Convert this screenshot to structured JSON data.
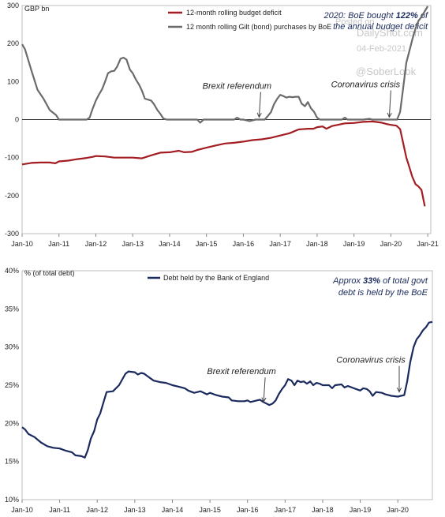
{
  "chart_data": [
    {
      "type": "line",
      "unit_label": "GBP bn",
      "ylim": [
        -300,
        300
      ],
      "y_ticks": [
        -300,
        -200,
        -100,
        0,
        100,
        200,
        300
      ],
      "x_range": [
        2010.0,
        2021.083
      ],
      "x_ticks": [
        "Jan-10",
        "Jan-11",
        "Jan-12",
        "Jan-13",
        "Jan-14",
        "Jan-15",
        "Jan-16",
        "Jan-17",
        "Jan-18",
        "Jan-19",
        "Jan-20",
        "Jan-21"
      ],
      "legend": "top-left",
      "series": [
        {
          "name": "12-month rolling budget deficit",
          "color": "#a31d22",
          "points": [
            [
              2010.0,
              -118
            ],
            [
              2010.25,
              -114
            ],
            [
              2010.5,
              -113
            ],
            [
              2010.75,
              -113
            ],
            [
              2010.9,
              -115
            ],
            [
              2011.0,
              -110
            ],
            [
              2011.25,
              -108
            ],
            [
              2011.5,
              -104
            ],
            [
              2011.75,
              -101
            ],
            [
              2011.92,
              -98
            ],
            [
              2012.0,
              -96
            ],
            [
              2012.25,
              -97
            ],
            [
              2012.5,
              -100
            ],
            [
              2012.75,
              -100
            ],
            [
              2013.0,
              -100
            ],
            [
              2013.25,
              -102
            ],
            [
              2013.5,
              -94
            ],
            [
              2013.75,
              -87
            ],
            [
              2014.0,
              -86
            ],
            [
              2014.25,
              -82
            ],
            [
              2014.4,
              -86
            ],
            [
              2014.6,
              -85
            ],
            [
              2014.75,
              -80
            ],
            [
              2015.0,
              -74
            ],
            [
              2015.25,
              -68
            ],
            [
              2015.5,
              -63
            ],
            [
              2015.75,
              -61
            ],
            [
              2016.0,
              -58
            ],
            [
              2016.25,
              -54
            ],
            [
              2016.5,
              -52
            ],
            [
              2016.75,
              -48
            ],
            [
              2017.0,
              -42
            ],
            [
              2017.25,
              -36
            ],
            [
              2017.5,
              -26
            ],
            [
              2017.75,
              -24
            ],
            [
              2017.9,
              -24
            ],
            [
              2018.0,
              -20
            ],
            [
              2018.15,
              -18
            ],
            [
              2018.25,
              -24
            ],
            [
              2018.4,
              -17
            ],
            [
              2018.6,
              -13
            ],
            [
              2018.75,
              -10
            ],
            [
              2019.0,
              -9
            ],
            [
              2019.25,
              -6
            ],
            [
              2019.5,
              -5
            ],
            [
              2019.75,
              -8
            ],
            [
              2019.9,
              -12
            ],
            [
              2020.0,
              -14
            ],
            [
              2020.15,
              -16
            ],
            [
              2020.25,
              -25
            ],
            [
              2020.33,
              -60
            ],
            [
              2020.42,
              -100
            ],
            [
              2020.5,
              -125
            ],
            [
              2020.58,
              -150
            ],
            [
              2020.67,
              -170
            ],
            [
              2020.75,
              -176
            ],
            [
              2020.83,
              -185
            ],
            [
              2020.92,
              -228
            ]
          ]
        },
        {
          "name": "12 month rolling Gilt (bond) purchases by BoE",
          "color": "#6b6b6b",
          "points": [
            [
              2010.0,
              198
            ],
            [
              2010.08,
              185
            ],
            [
              2010.25,
              130
            ],
            [
              2010.42,
              78
            ],
            [
              2010.58,
              55
            ],
            [
              2010.75,
              25
            ],
            [
              2010.92,
              12
            ],
            [
              2011.0,
              0
            ],
            [
              2011.5,
              0
            ],
            [
              2011.75,
              0
            ],
            [
              2011.83,
              5
            ],
            [
              2011.92,
              30
            ],
            [
              2012.0,
              50
            ],
            [
              2012.08,
              65
            ],
            [
              2012.17,
              80
            ],
            [
              2012.25,
              100
            ],
            [
              2012.33,
              122
            ],
            [
              2012.42,
              127
            ],
            [
              2012.5,
              128
            ],
            [
              2012.58,
              140
            ],
            [
              2012.67,
              160
            ],
            [
              2012.75,
              163
            ],
            [
              2012.83,
              158
            ],
            [
              2012.92,
              132
            ],
            [
              2013.0,
              122
            ],
            [
              2013.08,
              106
            ],
            [
              2013.17,
              92
            ],
            [
              2013.25,
              76
            ],
            [
              2013.33,
              55
            ],
            [
              2013.5,
              50
            ],
            [
              2013.58,
              40
            ],
            [
              2013.67,
              25
            ],
            [
              2013.75,
              15
            ],
            [
              2013.83,
              3
            ],
            [
              2013.92,
              0
            ],
            [
              2014.5,
              0
            ],
            [
              2014.75,
              0
            ],
            [
              2014.83,
              -8
            ],
            [
              2014.92,
              0
            ],
            [
              2015.5,
              0
            ],
            [
              2015.75,
              0
            ],
            [
              2015.83,
              5
            ],
            [
              2015.92,
              0
            ],
            [
              2016.0,
              0
            ],
            [
              2016.17,
              -4
            ],
            [
              2016.33,
              0
            ],
            [
              2016.58,
              0
            ],
            [
              2016.67,
              10
            ],
            [
              2016.75,
              20
            ],
            [
              2016.83,
              40
            ],
            [
              2016.92,
              55
            ],
            [
              2017.0,
              65
            ],
            [
              2017.08,
              62
            ],
            [
              2017.17,
              58
            ],
            [
              2017.25,
              60
            ],
            [
              2017.33,
              59
            ],
            [
              2017.42,
              60
            ],
            [
              2017.5,
              60
            ],
            [
              2017.58,
              42
            ],
            [
              2017.67,
              35
            ],
            [
              2017.75,
              46
            ],
            [
              2017.83,
              30
            ],
            [
              2017.92,
              20
            ],
            [
              2018.0,
              5
            ],
            [
              2018.08,
              0
            ],
            [
              2018.5,
              0
            ],
            [
              2018.67,
              0
            ],
            [
              2018.75,
              5
            ],
            [
              2018.83,
              0
            ],
            [
              2019.0,
              0
            ],
            [
              2019.25,
              0
            ],
            [
              2019.42,
              2
            ],
            [
              2019.5,
              0
            ],
            [
              2020.0,
              0
            ],
            [
              2020.17,
              0
            ],
            [
              2020.25,
              20
            ],
            [
              2020.33,
              80
            ],
            [
              2020.42,
              150
            ],
            [
              2020.5,
              180
            ],
            [
              2020.58,
              210
            ],
            [
              2020.67,
              240
            ],
            [
              2020.75,
              260
            ],
            [
              2020.83,
              270
            ],
            [
              2020.92,
              285
            ],
            [
              2021.0,
              298
            ]
          ]
        }
      ],
      "annotations": [
        {
          "text": "Brexit referendum",
          "x": 2016.47,
          "y": 0
        },
        {
          "text": "Coronavirus crisis",
          "x": 2020.0,
          "y": 0
        }
      ],
      "callout_parts": [
        "2020: BoE bought ",
        "122%",
        " of",
        "the annual budget deficit"
      ]
    },
    {
      "type": "line",
      "unit_label": "% (of total debt)",
      "ylim": [
        10,
        40
      ],
      "y_ticks": [
        "10%",
        "15%",
        "20%",
        "25%",
        "30%",
        "35%",
        "40%"
      ],
      "y_tick_values": [
        10,
        15,
        20,
        25,
        30,
        35,
        40
      ],
      "x_range": [
        2010.0,
        2020.92
      ],
      "x_ticks": [
        "Jan-10",
        "Jan-11",
        "Jan-12",
        "Jan-13",
        "Jan-14",
        "Jan-15",
        "Jan-16",
        "Jan-17",
        "Jan-18",
        "Jan-19",
        "Jan-20"
      ],
      "legend": "top-left",
      "series": [
        {
          "name": "Debt held by the Bank of England",
          "color": "#1a2a5e",
          "points": [
            [
              2010.0,
              19.5
            ],
            [
              2010.08,
              19.2
            ],
            [
              2010.17,
              18.6
            ],
            [
              2010.33,
              18.2
            ],
            [
              2010.5,
              17.5
            ],
            [
              2010.67,
              17.0
            ],
            [
              2010.83,
              16.8
            ],
            [
              2011.0,
              16.7
            ],
            [
              2011.17,
              16.4
            ],
            [
              2011.33,
              16.2
            ],
            [
              2011.42,
              15.8
            ],
            [
              2011.58,
              15.7
            ],
            [
              2011.67,
              15.5
            ],
            [
              2011.75,
              16.5
            ],
            [
              2011.83,
              18.0
            ],
            [
              2011.92,
              19.0
            ],
            [
              2012.0,
              20.5
            ],
            [
              2012.08,
              21.3
            ],
            [
              2012.17,
              22.8
            ],
            [
              2012.25,
              24.1
            ],
            [
              2012.42,
              24.2
            ],
            [
              2012.58,
              25.0
            ],
            [
              2012.75,
              26.5
            ],
            [
              2012.83,
              26.8
            ],
            [
              2013.0,
              26.7
            ],
            [
              2013.08,
              26.4
            ],
            [
              2013.17,
              26.6
            ],
            [
              2013.25,
              26.5
            ],
            [
              2013.33,
              26.2
            ],
            [
              2013.5,
              25.6
            ],
            [
              2013.67,
              25.4
            ],
            [
              2013.83,
              25.3
            ],
            [
              2014.0,
              25.0
            ],
            [
              2014.17,
              24.8
            ],
            [
              2014.33,
              24.6
            ],
            [
              2014.42,
              24.3
            ],
            [
              2014.58,
              24.0
            ],
            [
              2014.75,
              24.2
            ],
            [
              2014.92,
              23.8
            ],
            [
              2015.0,
              24.0
            ],
            [
              2015.17,
              23.7
            ],
            [
              2015.33,
              23.5
            ],
            [
              2015.5,
              23.4
            ],
            [
              2015.58,
              23.0
            ],
            [
              2015.75,
              22.9
            ],
            [
              2015.92,
              22.9
            ],
            [
              2016.0,
              23.0
            ],
            [
              2016.08,
              22.8
            ],
            [
              2016.25,
              23.0
            ],
            [
              2016.33,
              23.1
            ],
            [
              2016.42,
              22.8
            ],
            [
              2016.5,
              22.6
            ],
            [
              2016.58,
              22.4
            ],
            [
              2016.67,
              22.6
            ],
            [
              2016.75,
              23.0
            ],
            [
              2016.83,
              23.8
            ],
            [
              2016.92,
              24.5
            ],
            [
              2017.0,
              25.0
            ],
            [
              2017.08,
              25.8
            ],
            [
              2017.17,
              25.6
            ],
            [
              2017.25,
              25.0
            ],
            [
              2017.33,
              25.6
            ],
            [
              2017.42,
              25.4
            ],
            [
              2017.5,
              25.5
            ],
            [
              2017.58,
              25.2
            ],
            [
              2017.67,
              25.5
            ],
            [
              2017.75,
              25.0
            ],
            [
              2017.83,
              25.3
            ],
            [
              2017.92,
              25.2
            ],
            [
              2018.0,
              25.0
            ],
            [
              2018.17,
              25.0
            ],
            [
              2018.25,
              24.6
            ],
            [
              2018.33,
              25.0
            ],
            [
              2018.5,
              25.1
            ],
            [
              2018.58,
              24.7
            ],
            [
              2018.67,
              24.9
            ],
            [
              2018.83,
              24.6
            ],
            [
              2019.0,
              24.3
            ],
            [
              2019.08,
              24.6
            ],
            [
              2019.17,
              24.5
            ],
            [
              2019.25,
              24.2
            ],
            [
              2019.33,
              23.6
            ],
            [
              2019.42,
              24.1
            ],
            [
              2019.58,
              24.0
            ],
            [
              2019.67,
              23.8
            ],
            [
              2019.83,
              23.6
            ],
            [
              2020.0,
              23.5
            ],
            [
              2020.08,
              23.6
            ],
            [
              2020.17,
              23.7
            ],
            [
              2020.25,
              25.5
            ],
            [
              2020.33,
              28.0
            ],
            [
              2020.42,
              30.0
            ],
            [
              2020.5,
              31.0
            ],
            [
              2020.58,
              31.5
            ],
            [
              2020.67,
              32.2
            ],
            [
              2020.75,
              32.6
            ],
            [
              2020.83,
              33.2
            ],
            [
              2020.92,
              33.3
            ]
          ]
        }
      ],
      "annotations": [
        {
          "text": "Brexit referendum",
          "x": 2016.47,
          "y": 22.5
        },
        {
          "text": "Coronavirus crisis",
          "x": 2020.08,
          "y": 23.8
        }
      ],
      "callout_parts": [
        "Approx ",
        "33%",
        " of total govt",
        "debt is held by the BoE"
      ]
    }
  ],
  "watermark": {
    "line1": "Posted on",
    "line2": "DailyShot.com",
    "line3": "04-Feb-2021",
    "line4": "@SoberLook"
  }
}
